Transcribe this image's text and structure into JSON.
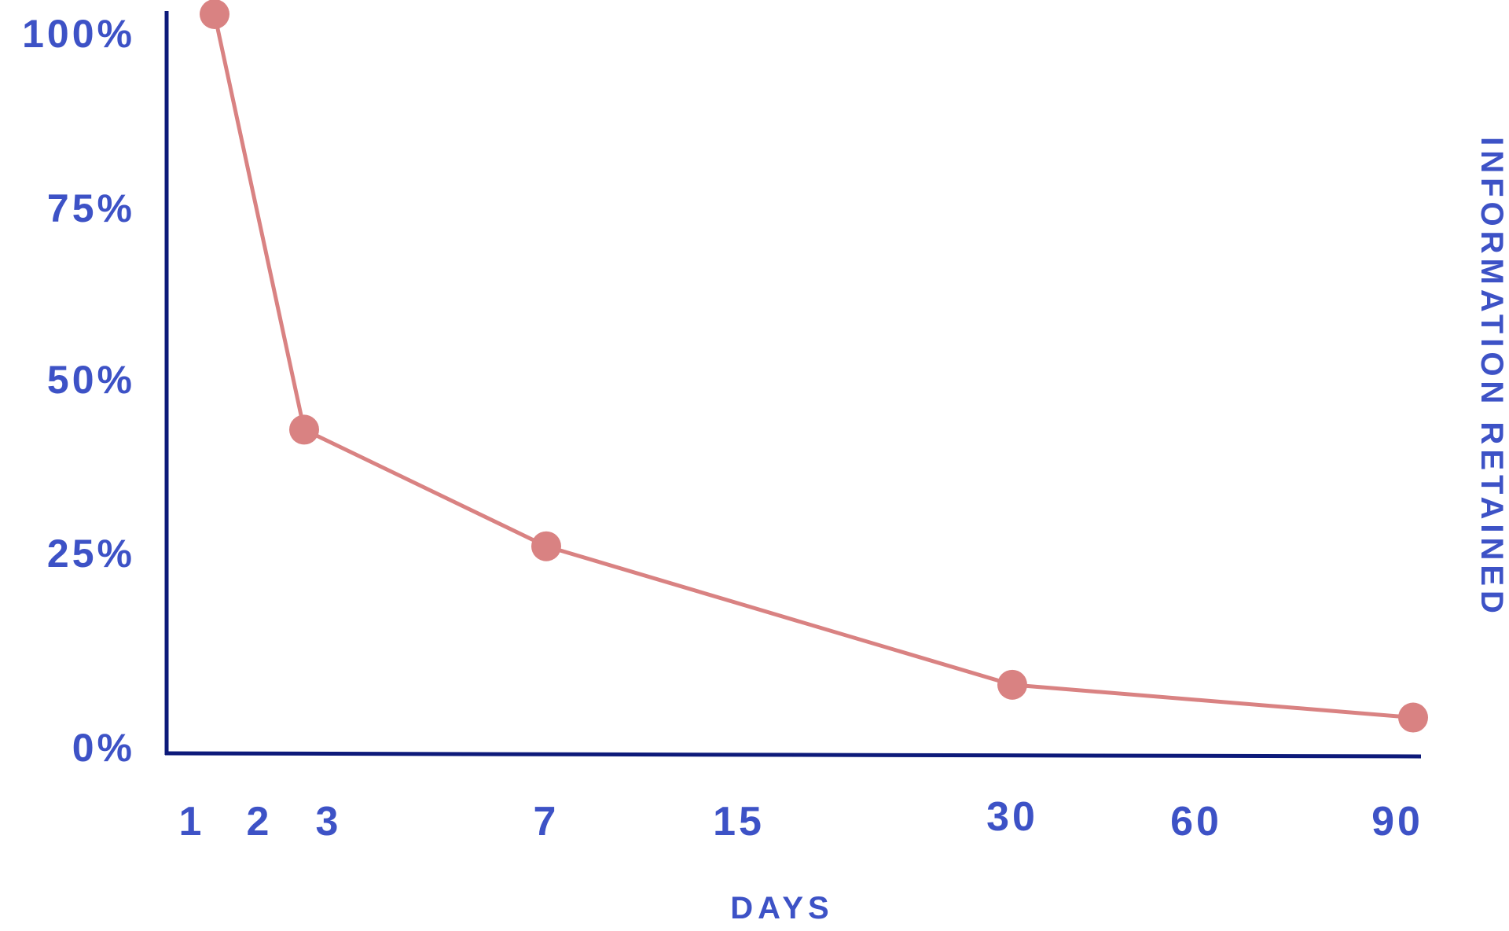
{
  "chart_data": {
    "type": "line",
    "xlabel": "DAYS",
    "ylabel": "INFORMATION RETAINED",
    "x_ticks": [
      "1",
      "2",
      "3",
      "7",
      "15",
      "30",
      "60",
      "90"
    ],
    "y_ticks": [
      "0%",
      "25%",
      "50%",
      "75%",
      "100%"
    ],
    "ylim": [
      0,
      100
    ],
    "grid": false,
    "series": [
      {
        "x": [
          "1",
          "3",
          "7",
          "30",
          "90"
        ],
        "values": [
          100,
          43,
          27,
          8,
          3.5
        ]
      }
    ],
    "colors": {
      "line": "#d98282",
      "marker": "#d98282",
      "axis": "#0d1a7a",
      "text": "#3d52c6"
    }
  }
}
